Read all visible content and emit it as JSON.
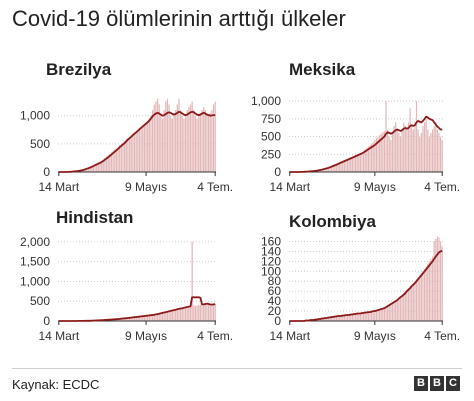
{
  "title": "Covid-19 ölümlerinin arttığı ülkeler",
  "source": "Kaynak: ECDC",
  "logo": [
    "B",
    "B",
    "C"
  ],
  "colors": {
    "bar": "#e3b7b7",
    "line": "#8c1a1a",
    "axis": "#333333",
    "grid": "#cccccc"
  },
  "chart_data": [
    {
      "type": "bar",
      "title": "Brezilya",
      "x_ticks": [
        "14 Mart",
        "9 Mayıs",
        "4 Tem."
      ],
      "y_ticks": [
        0,
        500,
        1000
      ],
      "ylim": [
        0,
        1350
      ],
      "series": [
        {
          "type": "bar",
          "values": [
            0,
            0,
            0,
            0,
            0,
            0,
            2,
            5,
            10,
            12,
            15,
            20,
            25,
            30,
            35,
            45,
            60,
            70,
            80,
            90,
            110,
            120,
            140,
            150,
            170,
            180,
            200,
            220,
            250,
            280,
            300,
            320,
            350,
            380,
            400,
            420,
            450,
            480,
            500,
            520,
            550,
            580,
            600,
            620,
            650,
            680,
            700,
            720,
            750,
            780,
            800,
            820,
            850,
            880,
            900,
            950,
            1000,
            1100,
            1200,
            1250,
            1300,
            1200,
            1000,
            950,
            1100,
            1250,
            1300,
            1200,
            1000,
            950,
            1050,
            1100,
            1200,
            1300,
            1100,
            1000,
            950,
            1000,
            1100,
            1150,
            1200,
            1250,
            1100,
            1000,
            950,
            1000,
            1050,
            1100,
            1150,
            1100,
            1050,
            1000,
            1050,
            1100,
            1200,
            1250
          ]
        },
        {
          "type": "line",
          "values": [
            0,
            0,
            0,
            0,
            0,
            0,
            1,
            3,
            6,
            9,
            12,
            16,
            20,
            25,
            30,
            38,
            48,
            58,
            68,
            78,
            92,
            105,
            120,
            133,
            148,
            160,
            178,
            196,
            218,
            240,
            262,
            285,
            310,
            335,
            360,
            385,
            410,
            440,
            465,
            490,
            515,
            545,
            575,
            600,
            625,
            655,
            680,
            705,
            730,
            760,
            785,
            810,
            835,
            860,
            885,
            915,
            950,
            990,
            1020,
            1040,
            1050,
            1040,
            1020,
            1000,
            1010,
            1030,
            1050,
            1060,
            1050,
            1030,
            1020,
            1030,
            1050,
            1070,
            1060,
            1040,
            1020,
            1010,
            1020,
            1040,
            1060,
            1070,
            1060,
            1040,
            1020,
            1010,
            1020,
            1040,
            1050,
            1040,
            1020,
            1010,
            1000,
            1005,
            1010,
            1010
          ]
        }
      ]
    },
    {
      "type": "bar",
      "title": "Meksika",
      "x_ticks": [
        "14 Mart",
        "9 Mayıs",
        "4 Tem."
      ],
      "y_ticks": [
        0,
        250,
        500,
        750,
        1000
      ],
      "ylim": [
        0,
        1100
      ],
      "series": [
        {
          "type": "bar",
          "values": [
            0,
            0,
            0,
            0,
            0,
            0,
            0,
            1,
            2,
            3,
            5,
            8,
            10,
            12,
            15,
            18,
            20,
            25,
            30,
            35,
            40,
            50,
            55,
            60,
            70,
            80,
            90,
            100,
            110,
            120,
            130,
            140,
            150,
            160,
            170,
            180,
            190,
            200,
            210,
            220,
            230,
            240,
            250,
            260,
            270,
            280,
            300,
            320,
            340,
            360,
            380,
            400,
            420,
            450,
            480,
            500,
            520,
            540,
            560,
            580,
            1000,
            600,
            500,
            450,
            550,
            650,
            700,
            600,
            550,
            500,
            600,
            700,
            650,
            600,
            700,
            900,
            650,
            600,
            700,
            1000,
            600,
            500,
            550,
            650,
            700,
            750,
            600,
            500,
            550,
            600,
            650,
            700,
            600,
            550,
            500,
            450
          ]
        },
        {
          "type": "line",
          "values": [
            0,
            0,
            0,
            0,
            0,
            0,
            0,
            1,
            2,
            3,
            4,
            6,
            8,
            10,
            12,
            14,
            17,
            20,
            24,
            28,
            33,
            39,
            45,
            51,
            58,
            66,
            75,
            84,
            93,
            102,
            112,
            122,
            132,
            142,
            152,
            162,
            172,
            182,
            192,
            202,
            212,
            222,
            232,
            242,
            252,
            262,
            275,
            290,
            305,
            320,
            335,
            350,
            365,
            380,
            400,
            420,
            440,
            460,
            480,
            500,
            540,
            560,
            550,
            540,
            550,
            570,
            590,
            600,
            590,
            580,
            590,
            610,
            620,
            610,
            620,
            650,
            660,
            650,
            660,
            700,
            720,
            710,
            700,
            720,
            750,
            780,
            770,
            750,
            740,
            730,
            700,
            670,
            640,
            620,
            600,
            600
          ]
        }
      ]
    },
    {
      "type": "bar",
      "title": "Hindistan",
      "x_ticks": [
        "14 Mart",
        "9 Mayıs",
        "4 Tem."
      ],
      "y_ticks": [
        0,
        500,
        1000,
        1500,
        2000
      ],
      "ylim": [
        0,
        2150
      ],
      "series": [
        {
          "type": "bar",
          "values": [
            0,
            0,
            0,
            0,
            0,
            0,
            0,
            0,
            0,
            1,
            1,
            2,
            2,
            3,
            3,
            4,
            5,
            5,
            6,
            8,
            10,
            12,
            15,
            18,
            20,
            22,
            25,
            28,
            30,
            32,
            35,
            38,
            40,
            42,
            45,
            48,
            50,
            55,
            60,
            65,
            70,
            75,
            80,
            85,
            90,
            95,
            100,
            105,
            110,
            115,
            120,
            125,
            130,
            135,
            140,
            145,
            150,
            155,
            160,
            170,
            180,
            190,
            200,
            210,
            220,
            230,
            240,
            250,
            260,
            270,
            280,
            290,
            300,
            310,
            320,
            330,
            340,
            350,
            360,
            370,
            380,
            2000,
            400,
            380,
            390,
            400,
            410,
            420,
            430,
            440,
            450,
            430,
            420,
            410,
            420,
            430
          ]
        },
        {
          "type": "line",
          "values": [
            0,
            0,
            0,
            0,
            0,
            0,
            0,
            0,
            0,
            1,
            1,
            1,
            2,
            2,
            3,
            3,
            4,
            4,
            5,
            6,
            8,
            10,
            12,
            14,
            16,
            18,
            21,
            24,
            27,
            29,
            32,
            35,
            38,
            40,
            43,
            46,
            49,
            53,
            58,
            63,
            68,
            72,
            77,
            82,
            87,
            92,
            97,
            102,
            107,
            112,
            117,
            122,
            127,
            132,
            137,
            142,
            147,
            152,
            158,
            166,
            175,
            185,
            195,
            205,
            215,
            225,
            235,
            245,
            255,
            265,
            275,
            285,
            295,
            305,
            315,
            325,
            335,
            345,
            355,
            365,
            375,
            600,
            600,
            600,
            600,
            600,
            590,
            420,
            420,
            430,
            440,
            430,
            420,
            415,
            420,
            425
          ]
        }
      ]
    },
    {
      "type": "bar",
      "title": "Kolombiya",
      "x_ticks": [
        "14 Mart",
        "9 Mayıs",
        "4 Tem."
      ],
      "y_ticks": [
        0,
        20,
        40,
        60,
        80,
        100,
        120,
        140,
        160
      ],
      "ylim": [
        0,
        175
      ],
      "series": [
        {
          "type": "bar",
          "values": [
            0,
            0,
            0,
            0,
            0,
            0,
            0,
            0,
            0,
            0,
            1,
            1,
            2,
            2,
            2,
            3,
            3,
            4,
            4,
            5,
            5,
            6,
            6,
            7,
            7,
            8,
            8,
            9,
            9,
            10,
            10,
            10,
            11,
            11,
            12,
            12,
            12,
            13,
            13,
            14,
            14,
            15,
            15,
            15,
            16,
            16,
            17,
            17,
            18,
            18,
            19,
            20,
            20,
            21,
            22,
            23,
            24,
            25,
            26,
            28,
            30,
            32,
            34,
            36,
            38,
            40,
            42,
            45,
            48,
            50,
            53,
            56,
            60,
            63,
            66,
            70,
            73,
            76,
            80,
            84,
            88,
            92,
            96,
            100,
            105,
            110,
            115,
            120,
            125,
            130,
            160,
            165,
            170,
            168,
            160,
            150
          ]
        },
        {
          "type": "line",
          "values": [
            0,
            0,
            0,
            0,
            0,
            0,
            0,
            0,
            0,
            0,
            1,
            1,
            1,
            2,
            2,
            2,
            3,
            3,
            4,
            4,
            5,
            5,
            6,
            6,
            7,
            7,
            8,
            8,
            9,
            9,
            10,
            10,
            10,
            11,
            11,
            12,
            12,
            12,
            13,
            13,
            14,
            14,
            15,
            15,
            15,
            16,
            16,
            17,
            17,
            18,
            18,
            19,
            20,
            20,
            21,
            22,
            23,
            24,
            25,
            26,
            28,
            30,
            32,
            34,
            36,
            38,
            40,
            42,
            45,
            48,
            50,
            53,
            56,
            60,
            63,
            66,
            70,
            73,
            76,
            80,
            84,
            88,
            92,
            96,
            100,
            104,
            108,
            112,
            116,
            120,
            125,
            130,
            134,
            138,
            140,
            141
          ]
        }
      ]
    }
  ]
}
